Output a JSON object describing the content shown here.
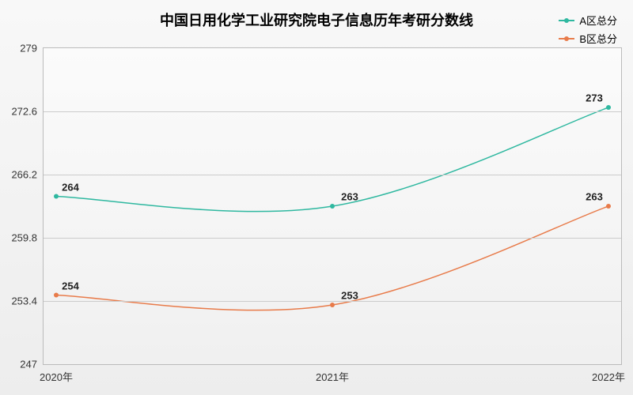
{
  "chart": {
    "type": "line",
    "title": "中国日用化学工业研究院电子信息历年考研分数线",
    "title_fontsize": 18,
    "background_gradient_top": "#f8f8f8",
    "background_gradient_bottom": "#ededed",
    "grid_color": "#cccccc",
    "border_color": "#bbbbbb",
    "label_fontsize": 13,
    "xlim": [
      2020,
      2022
    ],
    "ylim": [
      247,
      279
    ],
    "yticks": [
      247,
      253.4,
      259.8,
      266.2,
      272.6,
      279
    ],
    "xticks": [
      {
        "value": 2020,
        "label": "2020年"
      },
      {
        "value": 2021,
        "label": "2021年"
      },
      {
        "value": 2022,
        "label": "2022年"
      }
    ],
    "series": [
      {
        "name": "A区总分",
        "color": "#2fb8a0",
        "line_width": 1.5,
        "marker_radius": 3,
        "points": [
          {
            "x": 2020,
            "y": 264,
            "label": "264"
          },
          {
            "x": 2021,
            "y": 263,
            "label": "263"
          },
          {
            "x": 2022,
            "y": 273,
            "label": "273"
          }
        ]
      },
      {
        "name": "B区总分",
        "color": "#e87b4a",
        "line_width": 1.5,
        "marker_radius": 3,
        "points": [
          {
            "x": 2020,
            "y": 254,
            "label": "254"
          },
          {
            "x": 2021,
            "y": 253,
            "label": "253"
          },
          {
            "x": 2022,
            "y": 263,
            "label": "263"
          }
        ]
      }
    ]
  }
}
